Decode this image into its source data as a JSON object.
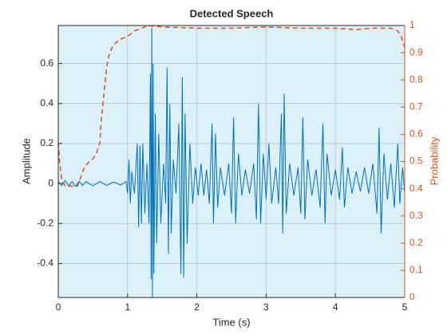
{
  "chart_data": {
    "type": "line",
    "title": "Detected Speech",
    "x_label": "Time (s)",
    "y_label": "Amplitude",
    "y2_label": "Probability",
    "xlim": [
      0,
      5
    ],
    "xticks": [
      0,
      1,
      2,
      3,
      4,
      5
    ],
    "ylim": [
      -0.57,
      0.79
    ],
    "yticks": [
      -0.4,
      -0.2,
      0,
      0.2,
      0.4,
      0.6
    ],
    "y2lim": [
      0,
      1
    ],
    "y2ticks": [
      0,
      0.1,
      0.2,
      0.3,
      0.4,
      0.5,
      0.6,
      0.7,
      0.8,
      0.9,
      1
    ],
    "grid": true,
    "background": "#dcf0fa",
    "y2_color": "#d95319",
    "series": [
      {
        "color": "#0072bd",
        "axis": "y",
        "dash": false,
        "x": [
          0,
          0.05,
          0.1,
          0.15,
          0.2,
          0.25,
          0.3,
          0.35,
          0.4,
          0.5,
          0.6,
          0.7,
          0.8,
          0.9,
          0.98,
          1.0,
          1.02,
          1.04,
          1.06,
          1.1,
          1.14,
          1.16,
          1.18,
          1.2,
          1.22,
          1.25,
          1.28,
          1.31,
          1.33,
          1.34,
          1.35,
          1.36,
          1.37,
          1.38,
          1.4,
          1.42,
          1.45,
          1.48,
          1.52,
          1.55,
          1.57,
          1.59,
          1.61,
          1.63,
          1.66,
          1.7,
          1.74,
          1.77,
          1.79,
          1.81,
          1.83,
          1.86,
          1.9,
          1.94,
          1.98,
          2.02,
          2.06,
          2.1,
          2.14,
          2.18,
          2.22,
          2.24,
          2.27,
          2.3,
          2.34,
          2.4,
          2.46,
          2.5,
          2.53,
          2.56,
          2.6,
          2.65,
          2.7,
          2.76,
          2.82,
          2.86,
          2.89,
          2.92,
          2.96,
          3.0,
          3.04,
          3.08,
          3.14,
          3.18,
          3.22,
          3.24,
          3.26,
          3.29,
          3.34,
          3.4,
          3.46,
          3.5,
          3.53,
          3.56,
          3.6,
          3.66,
          3.72,
          3.78,
          3.82,
          3.85,
          3.88,
          3.94,
          4.0,
          4.06,
          4.1,
          4.13,
          4.18,
          4.24,
          4.3,
          4.36,
          4.42,
          4.48,
          4.54,
          4.6,
          4.63,
          4.66,
          4.7,
          4.75,
          4.8,
          4.85,
          4.9,
          4.93,
          4.97,
          5.0
        ],
        "values": [
          0.01,
          -0.01,
          0.015,
          -0.012,
          0.01,
          -0.015,
          0.012,
          -0.01,
          0.01,
          -0.012,
          0.01,
          -0.01,
          0.008,
          -0.008,
          0.01,
          -0.05,
          0.12,
          -0.1,
          0.06,
          -0.05,
          0.2,
          -0.22,
          0.19,
          -0.2,
          0.2,
          -0.15,
          0.1,
          -0.2,
          0.55,
          -0.48,
          0.78,
          -0.57,
          0.6,
          -0.45,
          0.35,
          -0.3,
          0.25,
          -0.2,
          0.1,
          -0.1,
          0.58,
          -0.35,
          0.4,
          -0.25,
          0.12,
          -0.05,
          0.3,
          -0.45,
          0.53,
          -0.47,
          0.35,
          -0.3,
          0.2,
          -0.1,
          0.08,
          -0.06,
          0.1,
          -0.06,
          0.07,
          -0.1,
          0.3,
          -0.2,
          0.25,
          -0.12,
          0.08,
          -0.06,
          0.1,
          -0.15,
          0.33,
          -0.2,
          0.15,
          -0.06,
          0.07,
          -0.05,
          0.1,
          -0.18,
          0.4,
          -0.2,
          0.15,
          -0.08,
          0.2,
          -0.1,
          0.08,
          -0.1,
          0.35,
          -0.25,
          0.45,
          -0.15,
          0.1,
          -0.06,
          0.08,
          -0.15,
          0.33,
          -0.18,
          0.12,
          -0.06,
          0.07,
          -0.12,
          0.3,
          -0.2,
          0.15,
          -0.06,
          0.07,
          -0.08,
          0.18,
          -0.12,
          0.08,
          -0.05,
          0.06,
          -0.04,
          0.08,
          -0.05,
          0.1,
          -0.15,
          0.28,
          -0.25,
          0.15,
          -0.08,
          0.1,
          -0.12,
          0.2,
          -0.1,
          0.08,
          -0.05
        ]
      },
      {
        "color": "#d95319",
        "axis": "y2",
        "dash": true,
        "x": [
          0,
          0.02,
          0.05,
          0.1,
          0.2,
          0.28,
          0.32,
          0.38,
          0.45,
          0.5,
          0.55,
          0.6,
          0.62,
          0.66,
          0.7,
          0.74,
          0.8,
          0.9,
          1.0,
          1.1,
          1.2,
          1.3,
          1.5,
          2.0,
          2.5,
          3.0,
          3.5,
          4.0,
          4.3,
          4.5,
          4.8,
          4.9,
          4.95,
          5.0
        ],
        "values": [
          0.57,
          0.5,
          0.43,
          0.41,
          0.41,
          0.41,
          0.44,
          0.48,
          0.5,
          0.51,
          0.53,
          0.57,
          0.65,
          0.75,
          0.85,
          0.9,
          0.93,
          0.95,
          0.96,
          0.98,
          0.99,
          1.0,
          0.995,
          0.99,
          0.99,
          0.995,
          0.99,
          0.99,
          0.985,
          0.99,
          0.99,
          0.98,
          0.96,
          0.92
        ]
      }
    ]
  }
}
